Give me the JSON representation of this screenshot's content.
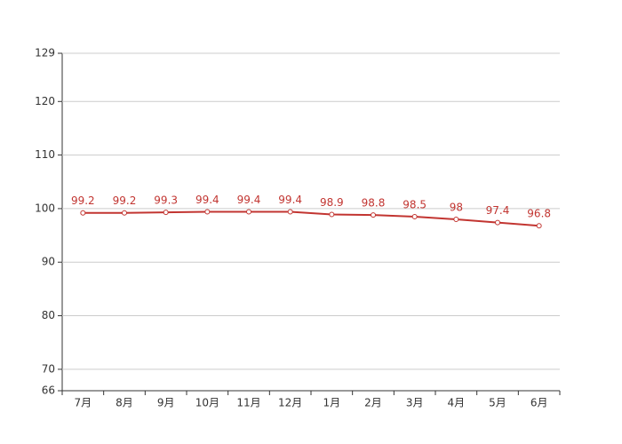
{
  "chart_data": {
    "type": "line",
    "categories": [
      "7月",
      "8月",
      "9月",
      "10月",
      "11月",
      "12月",
      "1月",
      "2月",
      "3月",
      "4月",
      "5月",
      "6月"
    ],
    "series": [
      {
        "color": "#c23531",
        "values": [
          99.2,
          99.2,
          99.3,
          99.4,
          99.4,
          99.4,
          98.9,
          98.8,
          98.5,
          98,
          97.4,
          96.8
        ]
      }
    ],
    "ylim": [
      66,
      129
    ],
    "yticks": [
      66,
      70,
      80,
      90,
      100,
      110,
      120,
      129
    ],
    "grid": true
  }
}
